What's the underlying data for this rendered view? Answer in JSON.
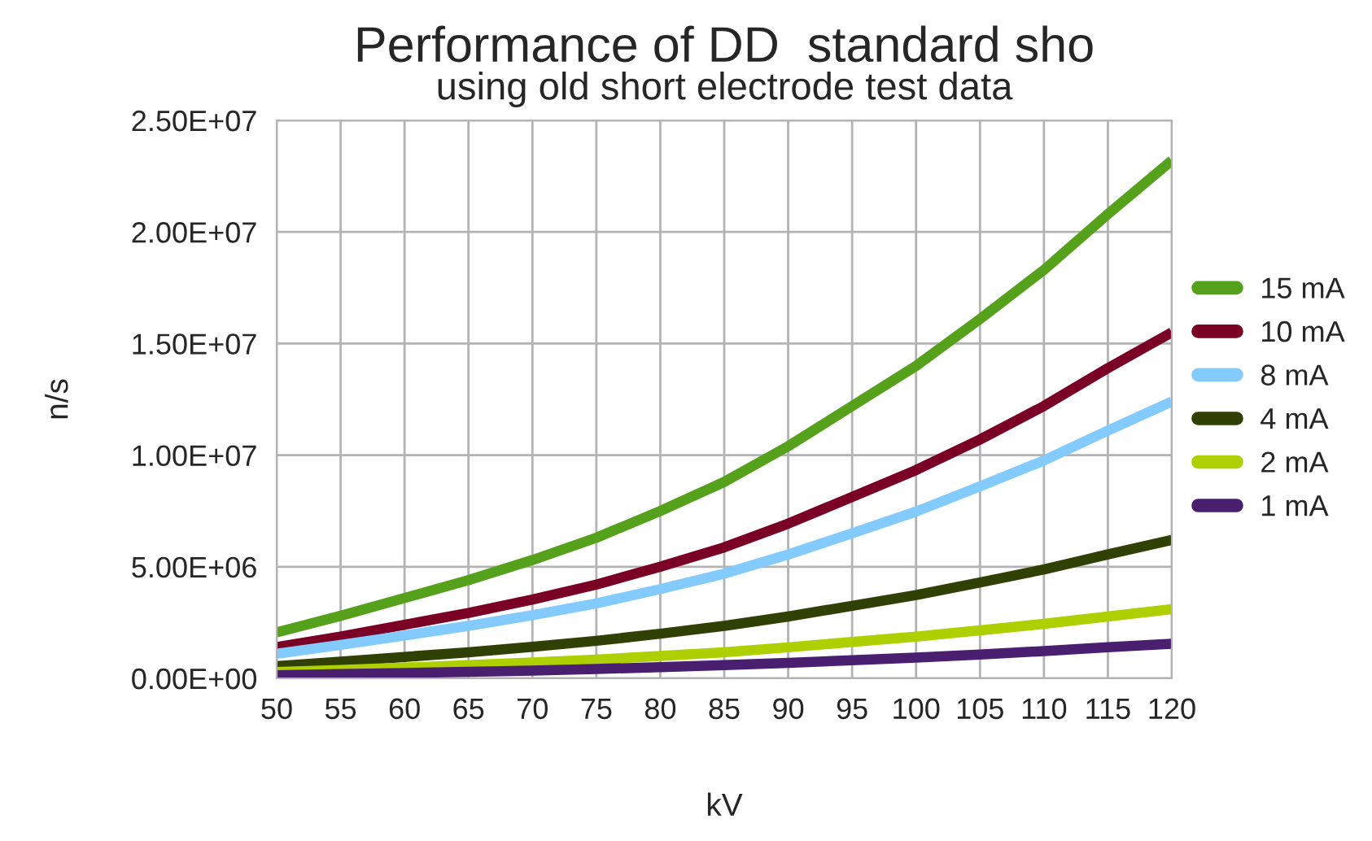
{
  "chart_data": {
    "type": "line",
    "title": "Performance of DD  standard sho",
    "subtitle": "using old short electrode test data",
    "xlabel": "kV",
    "ylabel": "n/s",
    "x": [
      50,
      55,
      60,
      65,
      70,
      75,
      80,
      85,
      90,
      95,
      100,
      105,
      110,
      115,
      120
    ],
    "series": [
      {
        "name": "15 mA",
        "color": "#56a11c",
        "values": [
          2060000,
          2800000,
          3600000,
          4400000,
          5300000,
          6300000,
          7500000,
          8800000,
          10400000,
          12200000,
          14000000,
          16100000,
          18300000,
          20800000,
          23200000
        ]
      },
      {
        "name": "10 mA",
        "color": "#7b0025",
        "values": [
          1400000,
          1870000,
          2400000,
          2930000,
          3530000,
          4200000,
          5000000,
          5870000,
          6930000,
          8130000,
          9330000,
          10700000,
          12200000,
          13900000,
          15500000
        ]
      },
      {
        "name": "8 mA",
        "color": "#83caff",
        "values": [
          1100000,
          1500000,
          1920000,
          2350000,
          2830000,
          3360000,
          4000000,
          4690000,
          5550000,
          6500000,
          7470000,
          8600000,
          9760000,
          11100000,
          12400000
        ]
      },
      {
        "name": "4 mA",
        "color": "#314004",
        "values": [
          550000,
          750000,
          960000,
          1170000,
          1410000,
          1680000,
          2000000,
          2350000,
          2770000,
          3250000,
          3730000,
          4300000,
          4880000,
          5550000,
          6200000
        ]
      },
      {
        "name": "2 mA",
        "color": "#aecf00",
        "values": [
          280000,
          370000,
          480000,
          590000,
          710000,
          840000,
          1000000,
          1170000,
          1390000,
          1630000,
          1870000,
          2150000,
          2440000,
          2770000,
          3100000
        ]
      },
      {
        "name": "1 mA",
        "color": "#4b1f6f",
        "values": [
          140000,
          190000,
          240000,
          290000,
          350000,
          420000,
          500000,
          590000,
          690000,
          810000,
          930000,
          1070000,
          1220000,
          1390000,
          1550000
        ]
      }
    ],
    "xlim": [
      50,
      120
    ],
    "xticks": [
      50,
      55,
      60,
      65,
      70,
      75,
      80,
      85,
      90,
      95,
      100,
      105,
      110,
      115,
      120
    ],
    "ylim": [
      0,
      25000000
    ],
    "yticks": [
      {
        "value": 0,
        "label": "0.00E+00"
      },
      {
        "value": 5000000,
        "label": "5.00E+06"
      },
      {
        "value": 10000000,
        "label": "1.00E+07"
      },
      {
        "value": 15000000,
        "label": "1.50E+07"
      },
      {
        "value": 20000000,
        "label": "2.00E+07"
      },
      {
        "value": 25000000,
        "label": "2.50E+07"
      }
    ],
    "grid": true,
    "legend": "right",
    "marker": "none",
    "line_style": "solid"
  }
}
